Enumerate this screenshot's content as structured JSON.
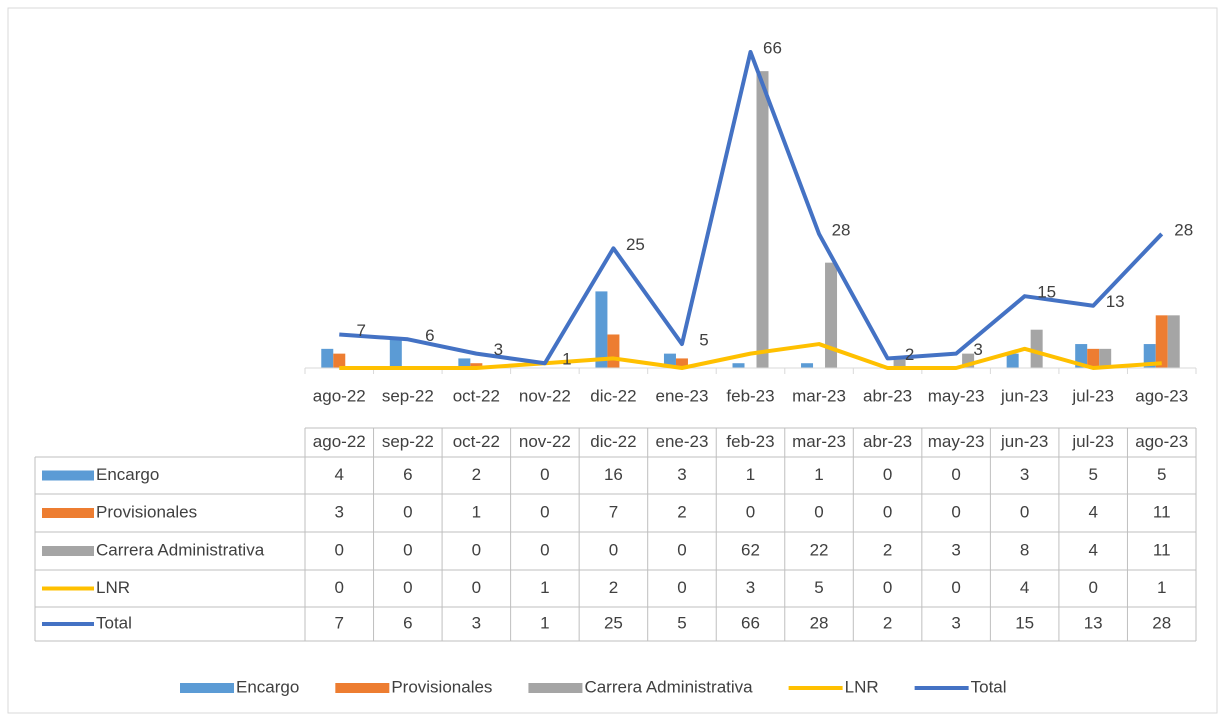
{
  "chart_data": {
    "type": "combo",
    "categories": [
      "ago-22",
      "sep-22",
      "oct-22",
      "nov-22",
      "dic-22",
      "ene-23",
      "feb-23",
      "mar-23",
      "abr-23",
      "may-23",
      "jun-23",
      "jul-23",
      "ago-23"
    ],
    "series": [
      {
        "name": "Encargo",
        "type": "bar",
        "color": "#5b9bd5",
        "values": [
          4,
          6,
          2,
          0,
          16,
          3,
          1,
          1,
          0,
          0,
          3,
          5,
          5
        ]
      },
      {
        "name": "Provisionales",
        "type": "bar",
        "color": "#ed7d31",
        "values": [
          3,
          0,
          1,
          0,
          7,
          2,
          0,
          0,
          0,
          0,
          0,
          4,
          11
        ]
      },
      {
        "name": "Carrera Administrativa",
        "type": "bar",
        "color": "#a5a5a5",
        "values": [
          0,
          0,
          0,
          0,
          0,
          0,
          62,
          22,
          2,
          3,
          8,
          4,
          11
        ]
      },
      {
        "name": "LNR",
        "type": "line",
        "color": "#ffc000",
        "values": [
          0,
          0,
          0,
          1,
          2,
          0,
          3,
          5,
          0,
          0,
          4,
          0,
          1
        ]
      },
      {
        "name": "Total",
        "type": "line",
        "color": "#4472c4",
        "values": [
          7,
          6,
          3,
          1,
          25,
          5,
          66,
          28,
          2,
          3,
          15,
          13,
          28
        ],
        "data_labels": true
      }
    ],
    "data_table": true,
    "legend": "bottom"
  }
}
